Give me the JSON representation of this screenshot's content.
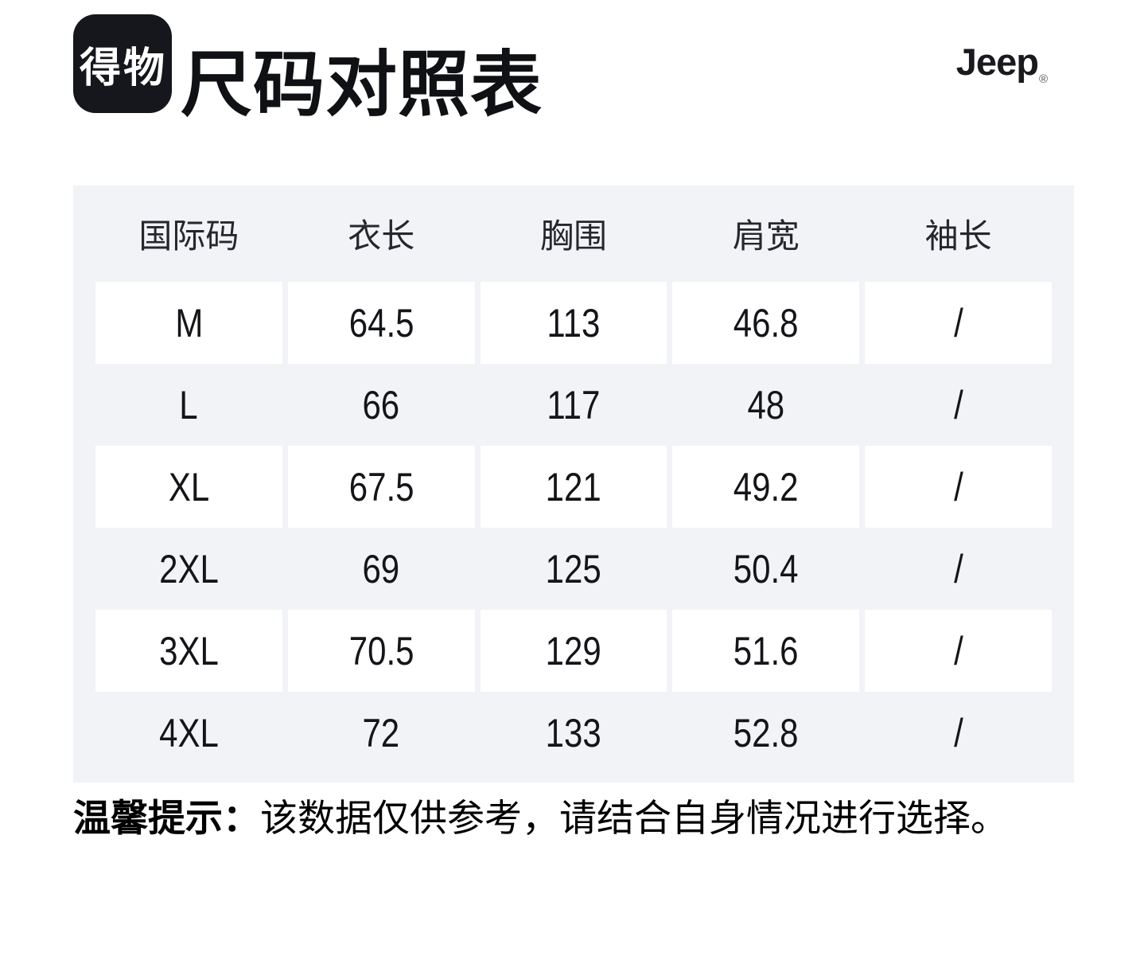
{
  "header": {
    "app_logo_text": "得物",
    "title": "尺码对照表",
    "brand_name": "Jeep",
    "registered_mark": "®"
  },
  "chart_data": {
    "type": "table",
    "title": "尺码对照表",
    "columns": [
      "国际码",
      "衣长",
      "胸围",
      "肩宽",
      "袖长"
    ],
    "rows": [
      [
        "M",
        "64.5",
        "113",
        "46.8",
        "/"
      ],
      [
        "L",
        "66",
        "117",
        "48",
        "/"
      ],
      [
        "XL",
        "67.5",
        "121",
        "49.2",
        "/"
      ],
      [
        "2XL",
        "69",
        "125",
        "50.4",
        "/"
      ],
      [
        "3XL",
        "70.5",
        "129",
        "51.6",
        "/"
      ],
      [
        "4XL",
        "72",
        "133",
        "52.8",
        "/"
      ]
    ],
    "layout_hints": {
      "row_striping": "white rows on light-gray panel, alternating",
      "all_cells_centered": true
    }
  },
  "footnote": {
    "prefix": "温馨提示：",
    "text": "该数据仅供参考，请结合自身情况进行选择。"
  },
  "colors": {
    "page_background": "#ffffff",
    "panel_background": "#f2f3f7",
    "row_background": "#ffffff",
    "logo_background": "#16171c",
    "text": "#141519"
  }
}
